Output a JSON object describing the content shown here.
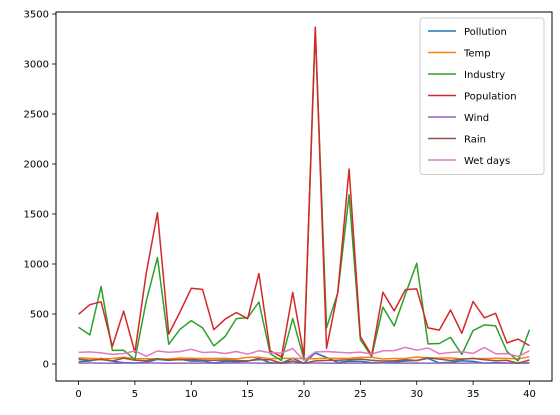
{
  "chart_data": {
    "type": "line",
    "title": "",
    "xlabel": "",
    "ylabel": "",
    "xlim": [
      -2,
      42
    ],
    "ylim": [
      -170,
      3520
    ],
    "xticks": [
      0,
      5,
      10,
      15,
      20,
      25,
      30,
      35,
      40
    ],
    "yticks": [
      0,
      500,
      1000,
      1500,
      2000,
      2500,
      3000,
      3500
    ],
    "grid": false,
    "legend_position": "top-right",
    "x": [
      0,
      1,
      2,
      3,
      4,
      5,
      6,
      7,
      8,
      9,
      10,
      11,
      12,
      13,
      14,
      15,
      16,
      17,
      18,
      19,
      20,
      21,
      22,
      23,
      24,
      25,
      26,
      27,
      28,
      29,
      30,
      31,
      32,
      33,
      34,
      35,
      36,
      37,
      38,
      39,
      40
    ],
    "series": [
      {
        "name": "Pollution",
        "color": "#1f77b4",
        "values": [
          24,
          30,
          56,
          28,
          14,
          10,
          17,
          46,
          36,
          47,
          29,
          31,
          11,
          26,
          23,
          29,
          56,
          12,
          10,
          56,
          8,
          110,
          65,
          16,
          28,
          28,
          14,
          14,
          17,
          30,
          35,
          56,
          11,
          17,
          33,
          26,
          9,
          14,
          10,
          9,
          12
        ]
      },
      {
        "name": "Temp",
        "color": "#ff7f0e",
        "values": [
          62,
          56,
          53,
          55,
          68,
          54,
          52,
          50,
          51,
          60,
          58,
          55,
          56,
          56,
          51,
          66,
          68,
          52,
          56,
          57,
          52,
          53,
          59,
          56,
          57,
          66,
          67,
          50,
          55,
          55,
          70,
          62,
          59,
          61,
          51,
          55,
          54,
          57,
          56,
          51,
          72
        ]
      },
      {
        "name": "Industry",
        "color": "#2ca02c",
        "values": [
          368,
          291,
          775,
          136,
          137,
          44,
          625,
          1064,
          197,
          347,
          434,
          361,
          181,
          275,
          454,
          462,
          620,
          104,
          34,
          454,
          46,
          3344,
          361,
          713,
          1692,
          243,
          76,
          569,
          380,
          699,
          1007,
          201,
          205,
          266,
          96,
          335,
          391,
          381,
          125,
          31,
          343
        ]
      },
      {
        "name": "Population",
        "color": "#d62728",
        "values": [
          497,
          593,
          622,
          176,
          529,
          116,
          905,
          1513,
          299,
          520,
          757,
          746,
          343,
          448,
          515,
          453,
          905,
          132,
          71,
          716,
          80,
          3369,
          158,
          720,
          1950,
          276,
          86,
          717,
          531,
          744,
          751,
          361,
          339,
          540,
          308,
          625,
          462,
          507,
          211,
          249,
          184
        ]
      },
      {
        "name": "Wind",
        "color": "#9467bd",
        "values": [
          9,
          10,
          9,
          8,
          9,
          9,
          10,
          10,
          8,
          9,
          9,
          10,
          8,
          9,
          10,
          10,
          9,
          8,
          9,
          10,
          9,
          10,
          9,
          8,
          10,
          9,
          9,
          10,
          9,
          9,
          10,
          8,
          10,
          9,
          9,
          10,
          9,
          9,
          8,
          9,
          9
        ]
      },
      {
        "name": "Rain",
        "color": "#8c564b",
        "values": [
          48,
          38,
          45,
          30,
          59,
          37,
          33,
          54,
          40,
          42,
          45,
          39,
          38,
          40,
          35,
          31,
          44,
          43,
          9,
          30,
          7,
          31,
          36,
          38,
          43,
          49,
          37,
          30,
          33,
          42,
          35,
          61,
          49,
          35,
          48,
          56,
          42,
          33,
          36,
          8,
          40
        ]
      },
      {
        "name": "Wet days",
        "color": "#e377c2",
        "values": [
          116,
          121,
          111,
          96,
          105,
          131,
          78,
          130,
          118,
          124,
          147,
          115,
          120,
          105,
          125,
          98,
          133,
          113,
          110,
          155,
          36,
          120,
          125,
          118,
          111,
          119,
          100,
          132,
          134,
          166,
          138,
          160,
          103,
          115,
          122,
          106,
          165,
          103,
          104,
          76,
          132
        ]
      }
    ]
  }
}
